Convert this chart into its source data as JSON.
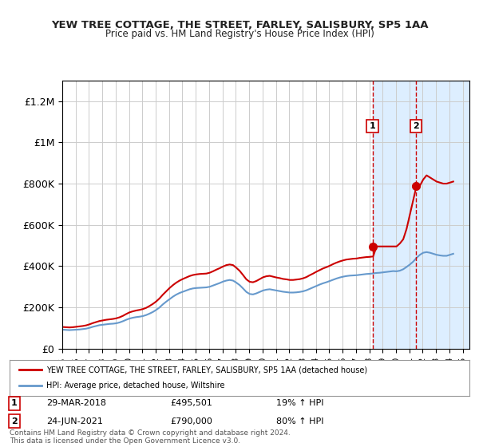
{
  "title": "YEW TREE COTTAGE, THE STREET, FARLEY, SALISBURY, SP5 1AA",
  "subtitle": "Price paid vs. HM Land Registry's House Price Index (HPI)",
  "title_color": "#222222",
  "background_color": "#ffffff",
  "plot_bg_color": "#ffffff",
  "grid_color": "#cccccc",
  "ylim": [
    0,
    1300000
  ],
  "yticks": [
    0,
    200000,
    400000,
    600000,
    800000,
    1000000,
    1200000
  ],
  "ytick_labels": [
    "£0",
    "£200K",
    "£400K",
    "£600K",
    "£800K",
    "£1M",
    "£1.2M"
  ],
  "xlim_start": 1995.0,
  "xlim_end": 2025.5,
  "sale1_date": 2018.24,
  "sale1_price": 495501,
  "sale1_label": "1",
  "sale1_text": "29-MAR-2018    £495,501    19% ↑ HPI",
  "sale2_date": 2021.48,
  "sale2_price": 790000,
  "sale2_label": "2",
  "sale2_text": "24-JUN-2021    £790,000    80% ↑ HPI",
  "shade_start": 2018.24,
  "shade_end": 2025.5,
  "shade_color": "#ddeeff",
  "red_line_color": "#cc0000",
  "blue_line_color": "#6699cc",
  "marker_color": "#cc0000",
  "legend_label_red": "YEW TREE COTTAGE, THE STREET, FARLEY, SALISBURY, SP5 1AA (detached house)",
  "legend_label_blue": "HPI: Average price, detached house, Wiltshire",
  "footer": "Contains HM Land Registry data © Crown copyright and database right 2024.\nThis data is licensed under the Open Government Licence v3.0.",
  "hpi_data": {
    "years": [
      1995.04,
      1995.29,
      1995.54,
      1995.79,
      1996.04,
      1996.29,
      1996.54,
      1996.79,
      1997.04,
      1997.29,
      1997.54,
      1997.79,
      1998.04,
      1998.29,
      1998.54,
      1998.79,
      1999.04,
      1999.29,
      1999.54,
      1999.79,
      2000.04,
      2000.29,
      2000.54,
      2000.79,
      2001.04,
      2001.29,
      2001.54,
      2001.79,
      2002.04,
      2002.29,
      2002.54,
      2002.79,
      2003.04,
      2003.29,
      2003.54,
      2003.79,
      2004.04,
      2004.29,
      2004.54,
      2004.79,
      2005.04,
      2005.29,
      2005.54,
      2005.79,
      2006.04,
      2006.29,
      2006.54,
      2006.79,
      2007.04,
      2007.29,
      2007.54,
      2007.79,
      2008.04,
      2008.29,
      2008.54,
      2008.79,
      2009.04,
      2009.29,
      2009.54,
      2009.79,
      2010.04,
      2010.29,
      2010.54,
      2010.79,
      2011.04,
      2011.29,
      2011.54,
      2011.79,
      2012.04,
      2012.29,
      2012.54,
      2012.79,
      2013.04,
      2013.29,
      2013.54,
      2013.79,
      2014.04,
      2014.29,
      2014.54,
      2014.79,
      2015.04,
      2015.29,
      2015.54,
      2015.79,
      2016.04,
      2016.29,
      2016.54,
      2016.79,
      2017.04,
      2017.29,
      2017.54,
      2017.79,
      2018.04,
      2018.29,
      2018.54,
      2018.79,
      2019.04,
      2019.29,
      2019.54,
      2019.79,
      2020.04,
      2020.29,
      2020.54,
      2020.79,
      2021.04,
      2021.29,
      2021.54,
      2021.79,
      2022.04,
      2022.29,
      2022.54,
      2022.79,
      2023.04,
      2023.29,
      2023.54,
      2023.79,
      2024.04,
      2024.29
    ],
    "values": [
      92000,
      91000,
      90000,
      91000,
      92000,
      93000,
      95000,
      97000,
      101000,
      106000,
      110000,
      114000,
      116000,
      118000,
      120000,
      121000,
      123000,
      127000,
      133000,
      140000,
      146000,
      150000,
      153000,
      155000,
      158000,
      163000,
      170000,
      178000,
      188000,
      200000,
      215000,
      228000,
      240000,
      252000,
      262000,
      270000,
      276000,
      282000,
      288000,
      292000,
      294000,
      295000,
      296000,
      297000,
      300000,
      306000,
      312000,
      318000,
      325000,
      330000,
      333000,
      330000,
      320000,
      308000,
      292000,
      275000,
      265000,
      263000,
      268000,
      275000,
      282000,
      286000,
      288000,
      285000,
      282000,
      279000,
      276000,
      274000,
      272000,
      272000,
      273000,
      275000,
      278000,
      283000,
      290000,
      297000,
      304000,
      311000,
      317000,
      322000,
      328000,
      334000,
      340000,
      345000,
      349000,
      352000,
      354000,
      355000,
      356000,
      358000,
      360000,
      362000,
      363000,
      365000,
      367000,
      368000,
      370000,
      372000,
      374000,
      376000,
      375000,
      378000,
      385000,
      396000,
      408000,
      422000,
      440000,
      455000,
      465000,
      468000,
      465000,
      460000,
      455000,
      452000,
      450000,
      450000,
      455000,
      460000
    ]
  },
  "red_data": {
    "years": [
      1995.04,
      1995.29,
      1995.54,
      1995.79,
      1996.04,
      1996.29,
      1996.54,
      1996.79,
      1997.04,
      1997.29,
      1997.54,
      1997.79,
      1998.04,
      1998.29,
      1998.54,
      1998.79,
      1999.04,
      1999.29,
      1999.54,
      1999.79,
      2000.04,
      2000.29,
      2000.54,
      2000.79,
      2001.04,
      2001.29,
      2001.54,
      2001.79,
      2002.04,
      2002.29,
      2002.54,
      2002.79,
      2003.04,
      2003.29,
      2003.54,
      2003.79,
      2004.04,
      2004.29,
      2004.54,
      2004.79,
      2005.04,
      2005.29,
      2005.54,
      2005.79,
      2006.04,
      2006.29,
      2006.54,
      2006.79,
      2007.04,
      2007.29,
      2007.54,
      2007.79,
      2008.04,
      2008.29,
      2008.54,
      2008.79,
      2009.04,
      2009.29,
      2009.54,
      2009.79,
      2010.04,
      2010.29,
      2010.54,
      2010.79,
      2011.04,
      2011.29,
      2011.54,
      2011.79,
      2012.04,
      2012.29,
      2012.54,
      2012.79,
      2013.04,
      2013.29,
      2013.54,
      2013.79,
      2014.04,
      2014.29,
      2014.54,
      2014.79,
      2015.04,
      2015.29,
      2015.54,
      2015.79,
      2016.04,
      2016.29,
      2016.54,
      2016.79,
      2017.04,
      2017.29,
      2017.54,
      2017.79,
      2018.04,
      2018.29,
      2018.54,
      2018.79,
      2019.04,
      2019.29,
      2019.54,
      2019.79,
      2020.04,
      2020.29,
      2020.54,
      2020.79,
      2021.04,
      2021.29,
      2021.54,
      2021.79,
      2022.04,
      2022.29,
      2022.54,
      2022.79,
      2023.04,
      2023.29,
      2023.54,
      2023.79,
      2024.04,
      2024.29
    ],
    "values": [
      105000,
      104000,
      103000,
      104000,
      106000,
      108000,
      110000,
      113000,
      118000,
      124000,
      129000,
      134000,
      137000,
      140000,
      142000,
      144000,
      147000,
      152000,
      159000,
      168000,
      176000,
      181000,
      185000,
      188000,
      192000,
      198000,
      207000,
      217000,
      229000,
      244000,
      262000,
      278000,
      294000,
      308000,
      320000,
      330000,
      338000,
      345000,
      352000,
      357000,
      360000,
      362000,
      363000,
      364000,
      368000,
      375000,
      383000,
      390000,
      398000,
      405000,
      408000,
      405000,
      392000,
      377000,
      357000,
      336000,
      324000,
      322000,
      328000,
      337000,
      346000,
      351000,
      353000,
      349000,
      345000,
      342000,
      338000,
      336000,
      333000,
      333000,
      335000,
      337000,
      341000,
      347000,
      356000,
      364000,
      373000,
      381000,
      389000,
      395000,
      402000,
      410000,
      417000,
      423000,
      428000,
      432000,
      434000,
      436000,
      437000,
      440000,
      442000,
      444000,
      445000,
      447000,
      495501,
      495501,
      495501,
      495501,
      495501,
      495501,
      495501,
      510000,
      530000,
      580000,
      650000,
      720000,
      790000,
      790000,
      820000,
      840000,
      830000,
      820000,
      810000,
      805000,
      800000,
      800000,
      805000,
      810000
    ]
  }
}
